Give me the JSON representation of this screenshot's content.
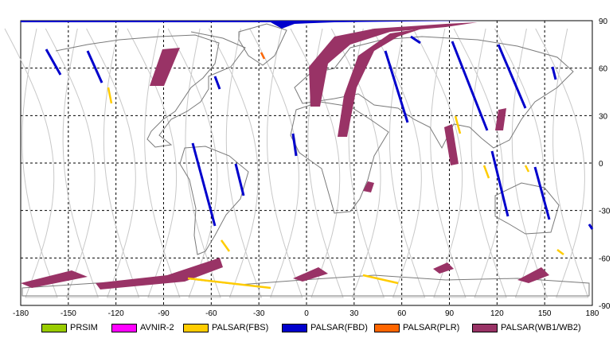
{
  "map": {
    "x_ticks": [
      "-180",
      "-150",
      "-120",
      "-90",
      "-60",
      "-30",
      "0",
      "30",
      "60",
      "90",
      "120",
      "150",
      "180"
    ],
    "y_ticks": [
      "90",
      "60",
      "30",
      "0",
      "-30",
      "-60",
      "-90"
    ],
    "frame_color": "#000000",
    "grid_color": "#000000",
    "land_color": "#7a7a7a",
    "track_color": "#c8c8c8"
  },
  "legend": [
    {
      "label": "PRSIM",
      "color": "#99cc00"
    },
    {
      "label": "AVNIR-2",
      "color": "#ff00ff"
    },
    {
      "label": "PALSAR(FBS)",
      "color": "#ffcc00"
    },
    {
      "label": "PALSAR(FBD)",
      "color": "#0000cc"
    },
    {
      "label": "PALSAR(PLR)",
      "color": "#ff6600"
    },
    {
      "label": "PALSAR(WB1/WB2)",
      "color": "#993366"
    }
  ]
}
